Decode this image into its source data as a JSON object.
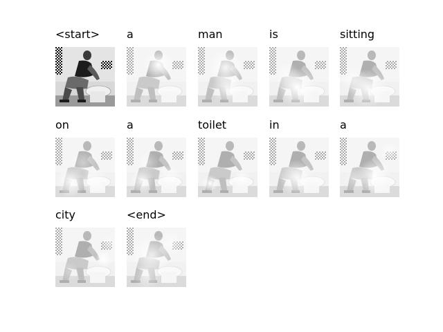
{
  "figure": {
    "words": [
      {
        "token": "<start>",
        "focus": "original"
      },
      {
        "token": "a",
        "focus": "upper-torso"
      },
      {
        "token": "man",
        "focus": "upper-body"
      },
      {
        "token": "is",
        "focus": "lower-center"
      },
      {
        "token": "sitting",
        "focus": "lower-body"
      },
      {
        "token": "on",
        "focus": "lower-left"
      },
      {
        "token": "a",
        "focus": "left-mid"
      },
      {
        "token": "toilet",
        "focus": "lower-left-small"
      },
      {
        "token": "in",
        "focus": "center"
      },
      {
        "token": "a",
        "focus": "center-right"
      },
      {
        "token": "city",
        "focus": "right-mid"
      },
      {
        "token": "<end>",
        "focus": "diffuse"
      }
    ]
  }
}
